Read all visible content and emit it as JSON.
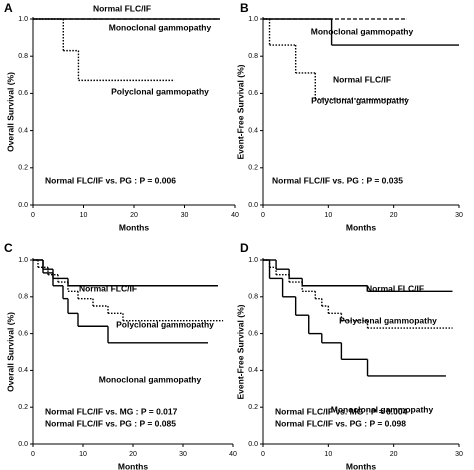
{
  "chart_data": [
    {
      "type": "step",
      "panel": "A",
      "ylabel": "Overall Survival (%)",
      "xlabel": "Months",
      "xlim": [
        0,
        40
      ],
      "ylim": [
        0,
        1
      ],
      "xticks": [
        0,
        10,
        20,
        30,
        40
      ],
      "yticks": [
        {
          "value": 0,
          "label": "0.0"
        },
        {
          "value": 0.2,
          "label": "0.2"
        },
        {
          "value": 0.4,
          "label": "0.4"
        },
        {
          "value": 0.6,
          "label": "0.6"
        },
        {
          "value": 0.8,
          "label": "0.8"
        },
        {
          "value": 1,
          "label": "1.0"
        }
      ],
      "annotations": [
        "Normal FLC/IF vs. PG : P = 0.006"
      ],
      "series": [
        {
          "name": "Normal FLC/IF",
          "color": "#000000",
          "dash": "solid",
          "x": [
            0,
            37
          ],
          "values": [
            1,
            1
          ]
        },
        {
          "name": "Monoclonal gammopathy",
          "color": "#000000",
          "dash": "dashed",
          "x": [
            0,
            37
          ],
          "values": [
            1,
            1
          ]
        },
        {
          "name": "Polyclonal gammopathy",
          "color": "#000000",
          "dash": "dotted",
          "x": [
            0,
            6,
            9,
            28
          ],
          "values": [
            1,
            0.83,
            0.67,
            0.67
          ]
        }
      ]
    },
    {
      "type": "step",
      "panel": "B",
      "ylabel": "Event-Free Survival (%)",
      "xlabel": "Months",
      "xlim": [
        0,
        30
      ],
      "ylim": [
        0,
        1
      ],
      "xticks": [
        0,
        10,
        20,
        30
      ],
      "yticks": [
        {
          "value": 0,
          "label": "0.0"
        },
        {
          "value": 0.2,
          "label": "0.2"
        },
        {
          "value": 0.4,
          "label": "0.4"
        },
        {
          "value": 0.6,
          "label": "0.6"
        },
        {
          "value": 0.8,
          "label": "0.8"
        },
        {
          "value": 1,
          "label": "1.0"
        }
      ],
      "annotations": [
        "Normal FLC/IF vs. PG : P = 0.035"
      ],
      "series": [
        {
          "name": "Monoclonal gammopathy",
          "color": "#000000",
          "dash": "dashed",
          "x": [
            0,
            22
          ],
          "values": [
            1,
            1
          ]
        },
        {
          "name": "Normal FLC/IF",
          "color": "#000000",
          "dash": "solid",
          "x": [
            0,
            10.5,
            30
          ],
          "values": [
            1,
            0.86,
            0.86
          ]
        },
        {
          "name": "Polyclonal gammopathy",
          "color": "#000000",
          "dash": "dotted",
          "x": [
            0,
            1,
            5,
            8,
            22
          ],
          "values": [
            1,
            0.86,
            0.71,
            0.57,
            0.57
          ]
        }
      ]
    },
    {
      "type": "step",
      "panel": "C",
      "ylabel": "Overall Survival (%)",
      "xlabel": "Months",
      "xlim": [
        0,
        40
      ],
      "ylim": [
        0,
        1
      ],
      "xticks": [
        0,
        10,
        20,
        30,
        40
      ],
      "yticks": [
        {
          "value": 0,
          "label": "0.0"
        },
        {
          "value": 0.2,
          "label": "0.2"
        },
        {
          "value": 0.4,
          "label": "0.4"
        },
        {
          "value": 0.6,
          "label": "0.6"
        },
        {
          "value": 0.8,
          "label": "0.8"
        },
        {
          "value": 1,
          "label": "1.0"
        }
      ],
      "annotations": [
        "Normal FLC/IF vs. MG : P = 0.017",
        "Normal FLC/IF vs. PG : P = 0.085"
      ],
      "series": [
        {
          "name": "Normal FLC/IF",
          "color": "#000000",
          "dash": "solid",
          "x": [
            0,
            2,
            4,
            7,
            37
          ],
          "values": [
            1,
            0.95,
            0.9,
            0.86,
            0.86
          ]
        },
        {
          "name": "Polyclonal gammopathy",
          "color": "#000000",
          "dash": "dotted",
          "x": [
            0,
            1,
            3,
            5,
            7,
            9,
            12,
            15,
            18,
            38
          ],
          "values": [
            1,
            0.96,
            0.92,
            0.88,
            0.83,
            0.79,
            0.75,
            0.71,
            0.67,
            0.67
          ]
        },
        {
          "name": "Monoclonal gammopathy",
          "color": "#000000",
          "dash": "solid",
          "x": [
            0,
            2,
            4,
            6,
            7,
            9,
            15,
            35
          ],
          "values": [
            1,
            0.93,
            0.86,
            0.79,
            0.71,
            0.64,
            0.55,
            0.55
          ]
        }
      ]
    },
    {
      "type": "step",
      "panel": "D",
      "ylabel": "Event-Free Survival (%)",
      "xlabel": "Months",
      "xlim": [
        0,
        30
      ],
      "ylim": [
        0,
        1
      ],
      "xticks": [
        0,
        10,
        20,
        30
      ],
      "yticks": [
        {
          "value": 0,
          "label": "0.0"
        },
        {
          "value": 0.2,
          "label": "0.2"
        },
        {
          "value": 0.4,
          "label": "0.4"
        },
        {
          "value": 0.6,
          "label": "0.6"
        },
        {
          "value": 0.8,
          "label": "0.8"
        },
        {
          "value": 1,
          "label": "1.0"
        }
      ],
      "annotations": [
        "Normal FLC/IF vs. MG : P = 0.004",
        "Normal FLC/IF vs. PG : P = 0.098"
      ],
      "series": [
        {
          "name": "Normal FLC/IF",
          "color": "#000000",
          "dash": "solid",
          "x": [
            0,
            2,
            4,
            6,
            16,
            29
          ],
          "values": [
            1,
            0.95,
            0.9,
            0.86,
            0.83,
            0.83
          ]
        },
        {
          "name": "Polyclonal gammopathy",
          "color": "#000000",
          "dash": "dotted",
          "x": [
            0,
            1,
            2,
            4,
            6,
            8,
            9,
            10,
            12,
            16,
            29
          ],
          "values": [
            1,
            0.96,
            0.92,
            0.88,
            0.83,
            0.79,
            0.75,
            0.71,
            0.67,
            0.63,
            0.63
          ]
        },
        {
          "name": "Monoclonal gammopathy",
          "color": "#000000",
          "dash": "solid",
          "x": [
            0,
            1,
            3,
            5,
            7,
            9,
            12,
            16,
            28
          ],
          "values": [
            1,
            0.9,
            0.8,
            0.7,
            0.6,
            0.55,
            0.46,
            0.37,
            0.37
          ]
        }
      ]
    }
  ]
}
